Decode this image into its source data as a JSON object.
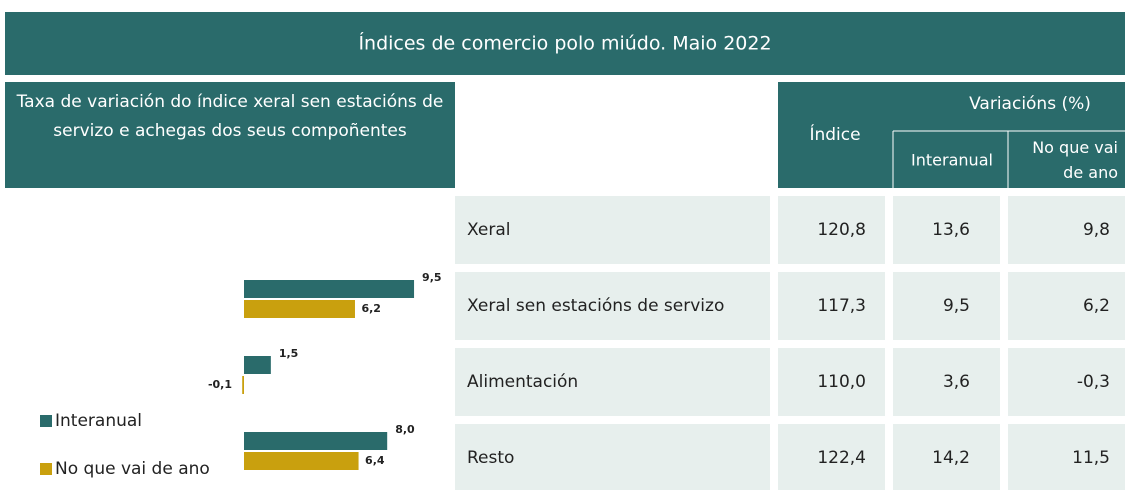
{
  "header": {
    "title": "Índices de comercio polo miúdo. Maio 2022"
  },
  "table": {
    "columns": [
      "Índice",
      "Variacións (%)",
      "Interanual",
      "No que vai de ano"
    ],
    "rows": [
      [
        "Xeral",
        "120,8",
        "13,6",
        "9,8"
      ],
      [
        "Xeral sen estacións de servizo",
        "117,3",
        "9,5",
        "6,2"
      ],
      [
        "Alimentación",
        "110,0",
        "3,6",
        "-0,3"
      ],
      [
        "Resto",
        "122,4",
        "14,2",
        "11,5"
      ]
    ]
  },
  "chart_data": {
    "type": "barh",
    "title": "Taxa de variación do índice xeral sen estacións de servizo e achegas dos seus compoñentes",
    "series": [
      {
        "name": "Interanual",
        "color": "#2a6b6b",
        "values": [
          9.5,
          1.5,
          8.0
        ],
        "value_labels": [
          "9,5",
          "1,5",
          "8,0"
        ]
      },
      {
        "name": "No que vai de ano",
        "color": "#c9a00e",
        "values": [
          6.2,
          -0.1,
          6.4
        ],
        "value_labels": [
          "6,2",
          "-0,1",
          "6,4"
        ]
      }
    ]
  }
}
